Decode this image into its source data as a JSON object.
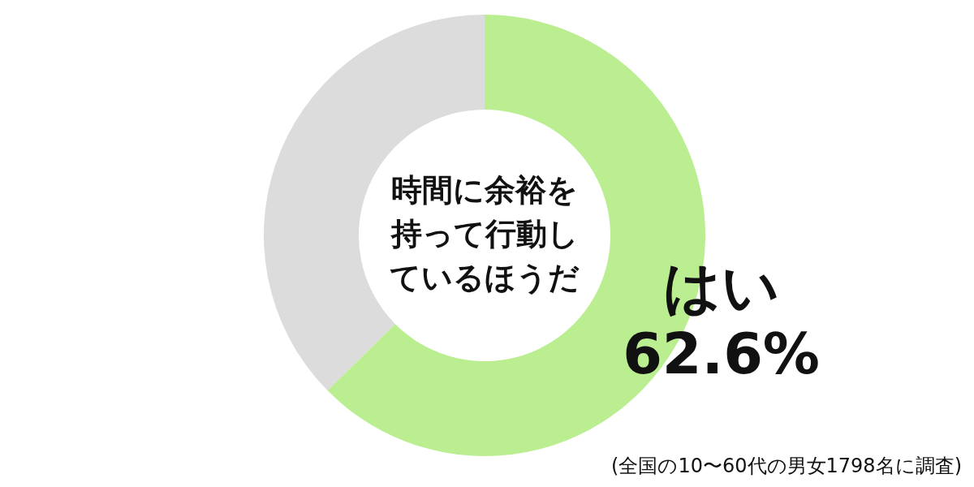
{
  "chart_data": {
    "type": "donut",
    "title": "時間に余裕を持って行動しているほうだ",
    "categories": [
      "はい",
      null
    ],
    "values": [
      62.6,
      37.4
    ],
    "colors": [
      "#bbee91",
      "#dcdcdc"
    ],
    "value_labels": [
      "62.6%",
      null
    ],
    "annotations": [
      "(全国の10〜60代の男女1798名に調査)"
    ]
  }
}
